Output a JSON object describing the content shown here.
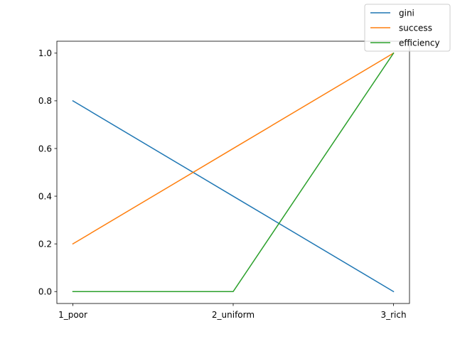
{
  "chart_data": {
    "type": "line",
    "categories": [
      "1_poor",
      "2_uniform",
      "3_rich"
    ],
    "series": [
      {
        "name": "gini",
        "values": [
          0.8,
          0.4,
          0.0
        ],
        "color": "#1f77b4"
      },
      {
        "name": "success",
        "values": [
          0.2,
          0.6,
          1.0
        ],
        "color": "#ff7f0e"
      },
      {
        "name": "efficiency",
        "values": [
          0.0,
          0.0,
          1.0
        ],
        "color": "#2ca02c"
      }
    ],
    "yticks": [
      "0.0",
      "0.2",
      "0.4",
      "0.6",
      "0.8",
      "1.0"
    ],
    "ylim": [
      -0.05,
      1.05
    ],
    "grid": false,
    "legend_position": "top-right"
  }
}
